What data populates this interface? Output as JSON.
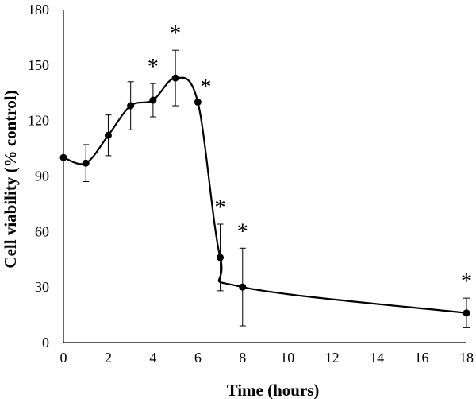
{
  "chart_data": {
    "type": "line",
    "title": "",
    "xlabel": "Time (hours)",
    "ylabel": "Cell viability (% control)",
    "xlim": [
      0,
      18
    ],
    "ylim": [
      0,
      180
    ],
    "x_ticks": [
      0,
      2,
      4,
      6,
      8,
      10,
      12,
      14,
      16,
      18
    ],
    "y_ticks": [
      0,
      30,
      60,
      90,
      120,
      150,
      180
    ],
    "grid": false,
    "smooth": true,
    "series": [
      {
        "x": [
          0,
          1,
          2,
          3,
          4,
          5,
          6,
          7,
          8,
          18
        ],
        "y": [
          100,
          97,
          112,
          128,
          131,
          143,
          130,
          46,
          30,
          16
        ],
        "error": [
          0,
          10,
          11,
          13,
          9,
          15,
          0,
          18,
          21,
          8
        ],
        "significance": [
          "",
          "",
          "",
          "",
          "*",
          "*",
          "*",
          "*",
          "*",
          "*"
        ]
      }
    ]
  }
}
